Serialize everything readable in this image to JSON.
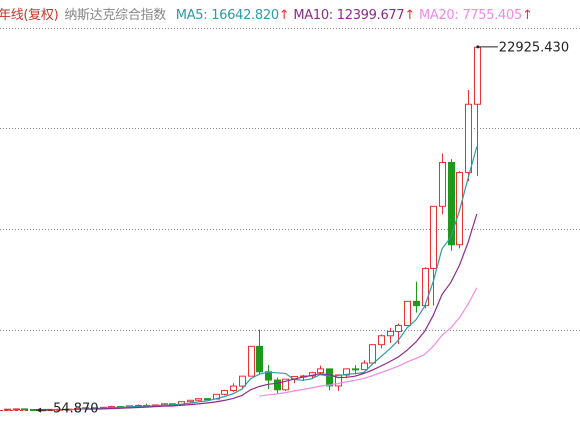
{
  "chart_data": {
    "type": "candlestick",
    "period": "年线(复权)",
    "title": "纳斯达克综合指数",
    "up_color": "#e8322e",
    "down_color": "#1b9a1b",
    "ylim": [
      0,
      26000
    ],
    "yticks": [
      5100,
      11460,
      17820,
      24120
    ],
    "grid": true,
    "open": [
      89,
      114,
      134,
      92,
      60,
      78,
      98,
      105,
      118,
      151,
      202,
      196,
      232,
      279,
      247,
      325,
      349,
      330,
      381,
      454,
      374,
      586,
      677,
      777,
      752,
      1052,
      1291,
      1570,
      2193,
      4069,
      2471,
      1950,
      1336,
      2003,
      2175,
      2205,
      2415,
      2652,
      1577,
      2269,
      2653,
      2605,
      3020,
      4177,
      4736,
      5007,
      5383,
      6903,
      6635,
      8973,
      12888,
      15645,
      10466,
      15011,
      19311
    ],
    "high": [
      114,
      136,
      136,
      96,
      89,
      98,
      106,
      139,
      152,
      208,
      223,
      241,
      329,
      288,
      326,
      411,
      456,
      397,
      486,
      470,
      586,
      677,
      791,
      804,
      1074,
      1328,
      1748,
      2200,
      4069,
      5133,
      2892,
      2098,
      2010,
      2191,
      2278,
      2470,
      2861,
      2661,
      2296,
      2676,
      2888,
      3197,
      4177,
      4814,
      5232,
      5512,
      6914,
      8133,
      9052,
      12899,
      16212,
      15853,
      15100,
      20205,
      22925.43
    ],
    "low": [
      89,
      113,
      88,
      54.87,
      60,
      75,
      94,
      99,
      117,
      124,
      176,
      159,
      230,
      225,
      245,
      323,
      291,
      329,
      377,
      325,
      355,
      545,
      645,
      693,
      743,
      988,
      1201,
      1357,
      2192,
      2288,
      1387,
      1108,
      1253,
      1750,
      1889,
      2012,
      2340,
      1295,
      1265,
      2062,
      2298,
      2592,
      3019,
      3946,
      4292,
      4210,
      5370,
      6190,
      6457,
      6631,
      12397,
      10089,
      10241,
      14477,
      14784
    ],
    "close": [
      114,
      134,
      92,
      60,
      78,
      98,
      105,
      118,
      151,
      202,
      196,
      232,
      279,
      247,
      325,
      349,
      330,
      381,
      454,
      374,
      586,
      677,
      777,
      752,
      1052,
      1291,
      1570,
      2193,
      4069,
      2471,
      1950,
      1336,
      2003,
      2175,
      2205,
      2415,
      2652,
      1577,
      2269,
      2653,
      2605,
      3020,
      4177,
      4736,
      5007,
      5383,
      6903,
      6635,
      8973,
      12888,
      15645,
      10466,
      15011,
      19311,
      22900
    ],
    "max_label": {
      "value": 22925.43,
      "label": "22925.430"
    },
    "min_label": {
      "value": 54.87,
      "label": "54.870"
    },
    "series": [
      {
        "name": "MA5: 16642.820",
        "trend": "↑",
        "color": "#2f9aa8",
        "values": [
          null,
          null,
          null,
          null,
          96,
          92,
          87,
          92,
          110,
          135,
          154,
          180,
          212,
          231,
          256,
          286,
          306,
          326,
          368,
          378,
          425,
          494,
          574,
          633,
          769,
          910,
          1088,
          1372,
          2035,
          2319,
          2451,
          2404,
          2366,
          1987,
          1934,
          2027,
          2290,
          2205,
          2224,
          2313,
          2351,
          2425,
          2945,
          3438,
          3909,
          4465,
          5241,
          5733,
          6580,
          8156,
          10209,
          10921,
          12597,
          14664,
          16642.82
        ]
      },
      {
        "name": "MA10: 12399.677",
        "trend": "↑",
        "color": "#8e2a8e",
        "values": [
          null,
          null,
          null,
          null,
          null,
          null,
          null,
          null,
          null,
          116,
          123,
          134,
          152,
          171,
          196,
          220,
          243,
          269,
          300,
          317,
          356,
          400,
          450,
          501,
          574,
          668,
          791,
          973,
          1334,
          1544,
          1681,
          1746,
          1869,
          2011,
          2127,
          2239,
          2347,
          2286,
          2106,
          2124,
          2189,
          2358,
          2575,
          2831,
          3111,
          3408,
          3833,
          4339,
          5009,
          6033,
          7337,
          8081,
          9165,
          10622,
          12399.677
        ]
      },
      {
        "name": "MA20: 7755.405",
        "trend": "↑",
        "color": "#f08ae8",
        "values": [
          null,
          null,
          null,
          null,
          null,
          null,
          null,
          null,
          null,
          null,
          null,
          null,
          null,
          null,
          null,
          null,
          null,
          null,
          null,
          null,
          null,
          null,
          null,
          null,
          null,
          null,
          null,
          null,
          null,
          931,
          1019,
          1073,
          1160,
          1256,
          1351,
          1454,
          1569,
          1630,
          1720,
          1834,
          1935,
          2052,
          2222,
          2421,
          2619,
          2824,
          3090,
          3313,
          3558,
          4079,
          4763,
          5220,
          5870,
          6727,
          7755.405
        ]
      }
    ]
  }
}
